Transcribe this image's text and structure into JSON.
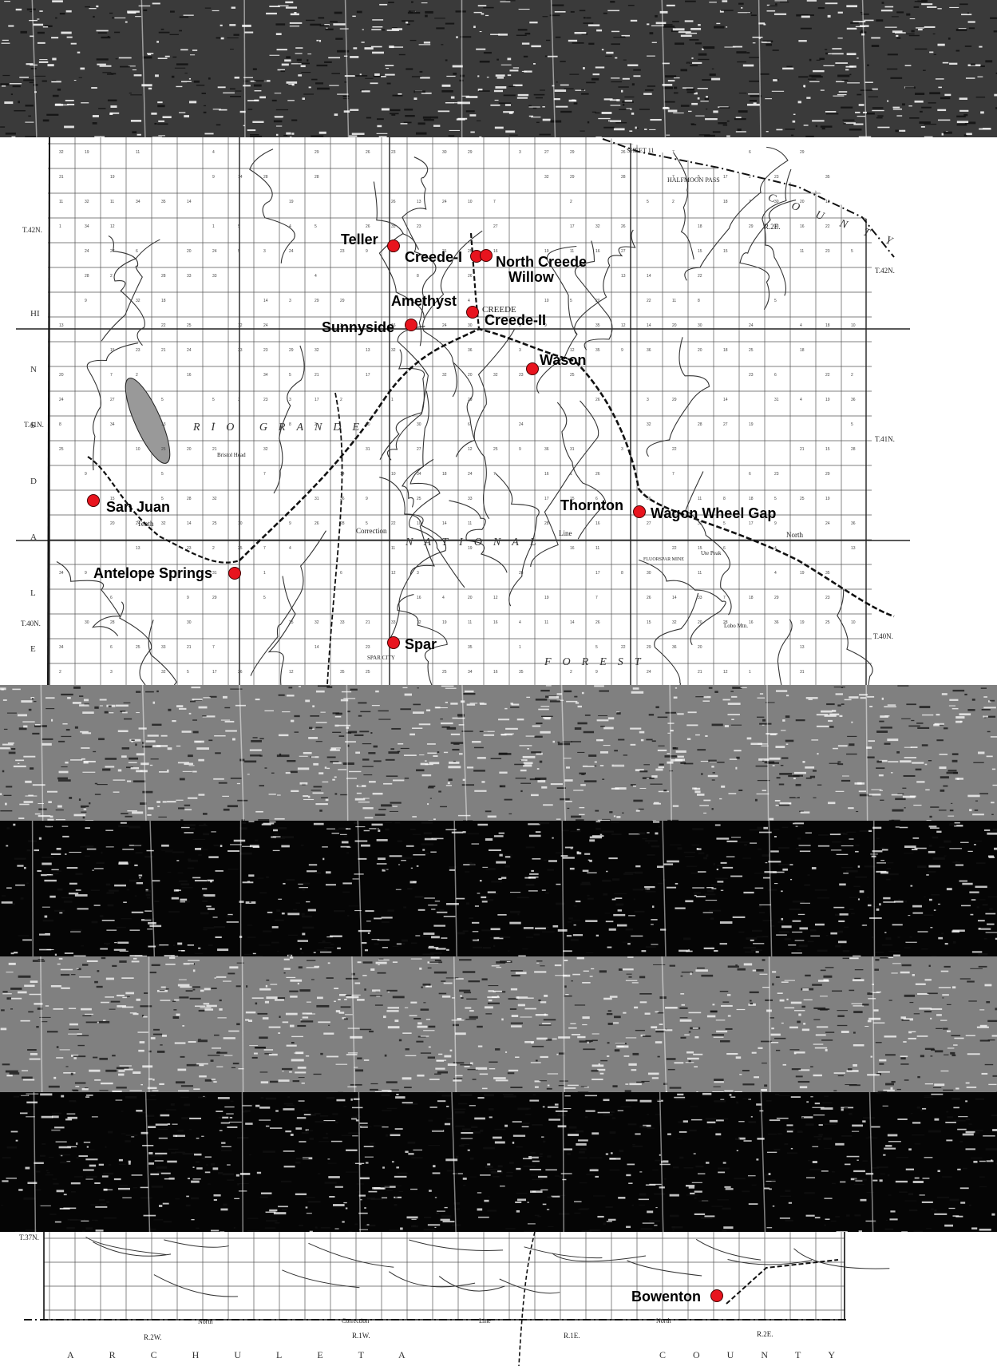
{
  "map": {
    "places": [
      {
        "name": "Teller"
      },
      {
        "name": "Creede-I"
      },
      {
        "name": "North Creede"
      },
      {
        "name": "Willow"
      },
      {
        "name": "Amethyst"
      },
      {
        "name": "Creede-II"
      },
      {
        "name": "Sunnyside"
      },
      {
        "name": "Wason"
      },
      {
        "name": "San Juan"
      },
      {
        "name": "Thornton"
      },
      {
        "name": "Wagon Wheel Gap"
      },
      {
        "name": "Antelope Springs"
      },
      {
        "name": "Spar"
      },
      {
        "name": "Bowenton"
      }
    ],
    "township_labels": [
      "T.42N.",
      "T.42N.",
      "T.41N.",
      "T.41N.",
      "T.40N.",
      "T.40N.",
      "T.37N."
    ],
    "range_labels": [
      "R.2E.",
      "R.2W.",
      "R.1W.",
      "R.1E.",
      "R.2E."
    ],
    "area_names": {
      "rio_grande": "RIO GRANDE",
      "national": "NATIONAL",
      "forest": "FOREST",
      "county_top": "COUNTY",
      "archuleta": "ARCHULETA",
      "county_bottom": "COUNTY",
      "hinsdale": "HINSDALE"
    },
    "feature_labels": {
      "creede": "CREEDE",
      "correction": "Correction",
      "line": "Line",
      "north": "North",
      "tenth": "Tenth",
      "halfmoon_pass": "HALFMOON PASS",
      "sheet": "SHEET 11",
      "spar_city": "SPAR CITY",
      "bristol_head": "Bristol Head",
      "ute_peak": "Ute Peak",
      "fluorspar_mine": "FLUORSPAR MINE",
      "lobo_mtn": "Lobo Mtn."
    },
    "marker_color": "#e8141e"
  }
}
